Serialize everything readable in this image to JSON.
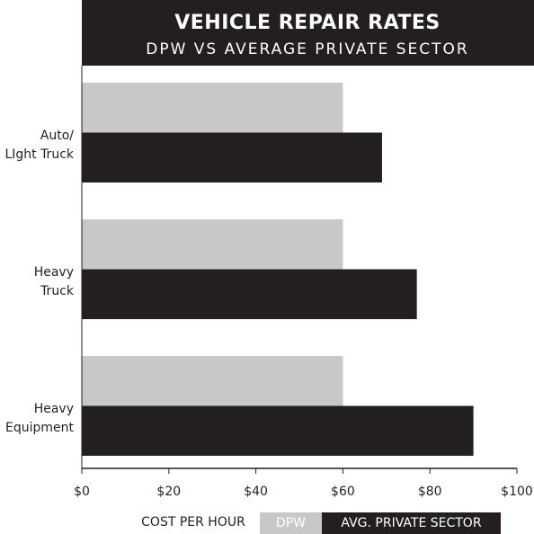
{
  "chart_data": {
    "type": "barh",
    "title": "VEHICLE REPAIR RATES",
    "subtitle": "DPW VS AVERAGE PRIVATE SECTOR",
    "x_label": "COST PER HOUR",
    "categories": [
      "Auto/\nLIght Truck",
      "Heavy\nTruck",
      "Heavy\nEquipment"
    ],
    "series": [
      {
        "name": "DPW",
        "color": "#c8c8c8",
        "values": [
          60,
          60,
          60
        ]
      },
      {
        "name": "AVG. PRIVATE SECTOR",
        "color": "#231f20",
        "values": [
          69,
          77,
          90
        ]
      }
    ],
    "xlim": [
      0,
      100
    ],
    "xticks": [
      {
        "value": 0,
        "label": "$0"
      },
      {
        "value": 20,
        "label": "$20"
      },
      {
        "value": 40,
        "label": "$40"
      },
      {
        "value": 60,
        "label": "$60"
      },
      {
        "value": 80,
        "label": "$80"
      },
      {
        "value": 100,
        "label": "$100"
      }
    ],
    "legend": "bottom"
  }
}
